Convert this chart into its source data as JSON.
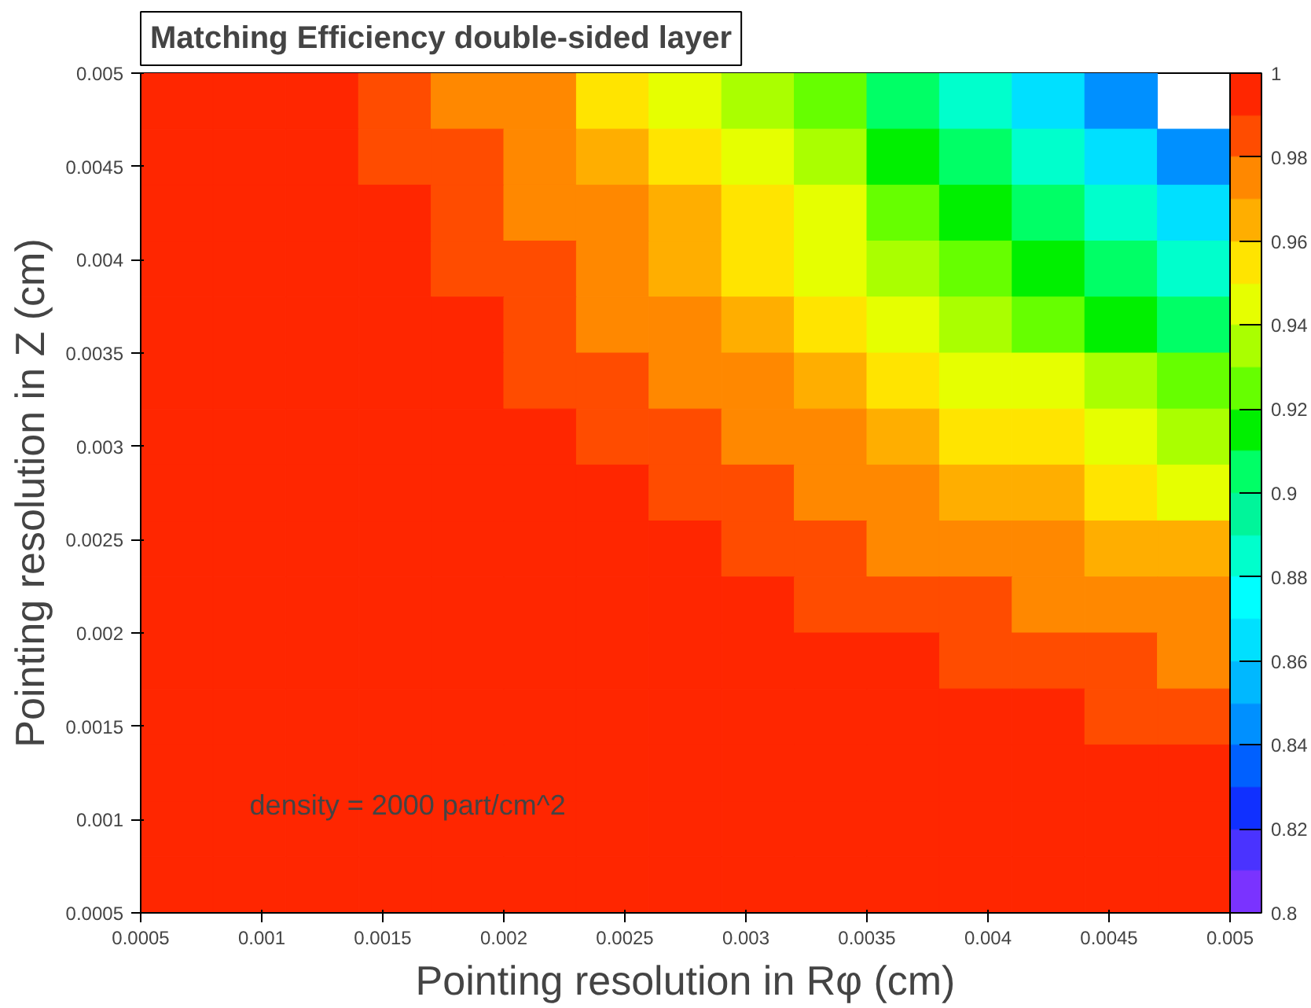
{
  "chart_data": {
    "type": "heatmap",
    "title": "Matching Efficiency double-sided layer",
    "xlabel": "Pointing resolution in Rφ (cm)",
    "ylabel": "Pointing resolution in Z (cm)",
    "annotations": [
      "density = 2000 part/cm^2"
    ],
    "x": [
      0.00065,
      0.00095,
      0.00125,
      0.00155,
      0.00185,
      0.00215,
      0.00245,
      0.00275,
      0.00305,
      0.00335,
      0.00365,
      0.00395,
      0.00425,
      0.00455,
      0.00485
    ],
    "y": [
      0.00485,
      0.00455,
      0.00425,
      0.00395,
      0.00365,
      0.00335,
      0.00305,
      0.00275,
      0.00245,
      0.00215,
      0.00185,
      0.00155,
      0.00125,
      0.00095,
      0.00065
    ],
    "xlim": [
      0.0005,
      0.005
    ],
    "ylim": [
      0.0005,
      0.005
    ],
    "xticks": [
      0.0005,
      0.001,
      0.0015,
      0.002,
      0.0025,
      0.003,
      0.0035,
      0.004,
      0.0045,
      0.005
    ],
    "yticks": [
      0.0005,
      0.001,
      0.0015,
      0.002,
      0.0025,
      0.003,
      0.0035,
      0.004,
      0.0045,
      0.005
    ],
    "clim": [
      0.8,
      1
    ],
    "cticks": [
      0.8,
      0.82,
      0.84,
      0.86,
      0.88,
      0.9,
      0.92,
      0.94,
      0.96,
      0.98,
      1
    ],
    "cells": [
      [
        1,
        0.99,
        0.99,
        0.98,
        0.97,
        0.97,
        0.95,
        0.94,
        0.93,
        0.92,
        0.9,
        0.88,
        0.86,
        0.84,
        null
      ],
      [
        1,
        0.99,
        0.99,
        0.98,
        0.98,
        0.97,
        0.96,
        0.95,
        0.94,
        0.93,
        0.91,
        0.9,
        0.88,
        0.86,
        0.84
      ],
      [
        1,
        0.99,
        0.99,
        0.99,
        0.98,
        0.97,
        0.97,
        0.96,
        0.95,
        0.94,
        0.92,
        0.91,
        0.9,
        0.88,
        0.86
      ],
      [
        1,
        1,
        0.99,
        0.99,
        0.98,
        0.98,
        0.97,
        0.96,
        0.95,
        0.94,
        0.93,
        0.92,
        0.91,
        0.9,
        0.88
      ],
      [
        1,
        1,
        0.99,
        0.99,
        0.99,
        0.98,
        0.97,
        0.97,
        0.96,
        0.95,
        0.94,
        0.93,
        0.92,
        0.91,
        0.9
      ],
      [
        1,
        1,
        0.99,
        0.99,
        0.99,
        0.98,
        0.98,
        0.97,
        0.97,
        0.96,
        0.95,
        0.94,
        0.94,
        0.93,
        0.92
      ],
      [
        1,
        1,
        1,
        0.99,
        0.99,
        0.99,
        0.98,
        0.98,
        0.97,
        0.97,
        0.96,
        0.95,
        0.95,
        0.94,
        0.93
      ],
      [
        1,
        1,
        1,
        0.99,
        0.99,
        0.99,
        0.99,
        0.98,
        0.98,
        0.97,
        0.97,
        0.96,
        0.96,
        0.95,
        0.94
      ],
      [
        1,
        1,
        1,
        1,
        0.99,
        0.99,
        0.99,
        0.99,
        0.98,
        0.98,
        0.97,
        0.97,
        0.97,
        0.96,
        0.96
      ],
      [
        1,
        1,
        1,
        1,
        0.99,
        0.99,
        0.99,
        0.99,
        0.99,
        0.98,
        0.98,
        0.98,
        0.97,
        0.97,
        0.97
      ],
      [
        1,
        1,
        1,
        1,
        1,
        0.99,
        0.99,
        0.99,
        0.99,
        0.99,
        0.99,
        0.98,
        0.98,
        0.98,
        0.97
      ],
      [
        1,
        1,
        1,
        1,
        1,
        1,
        1,
        0.99,
        0.99,
        0.99,
        0.99,
        0.99,
        0.99,
        0.98,
        0.98
      ],
      [
        1,
        1,
        1,
        1,
        1,
        1,
        1,
        1,
        1,
        0.99,
        0.99,
        0.99,
        0.99,
        0.99,
        0.99
      ],
      [
        1,
        1,
        1,
        1,
        1,
        1,
        1,
        1,
        1,
        1,
        1,
        1,
        0.99,
        0.99,
        0.99
      ],
      [
        1,
        1,
        1,
        1,
        1,
        1,
        1,
        1,
        1,
        1,
        1,
        1,
        1,
        1,
        1
      ]
    ]
  }
}
